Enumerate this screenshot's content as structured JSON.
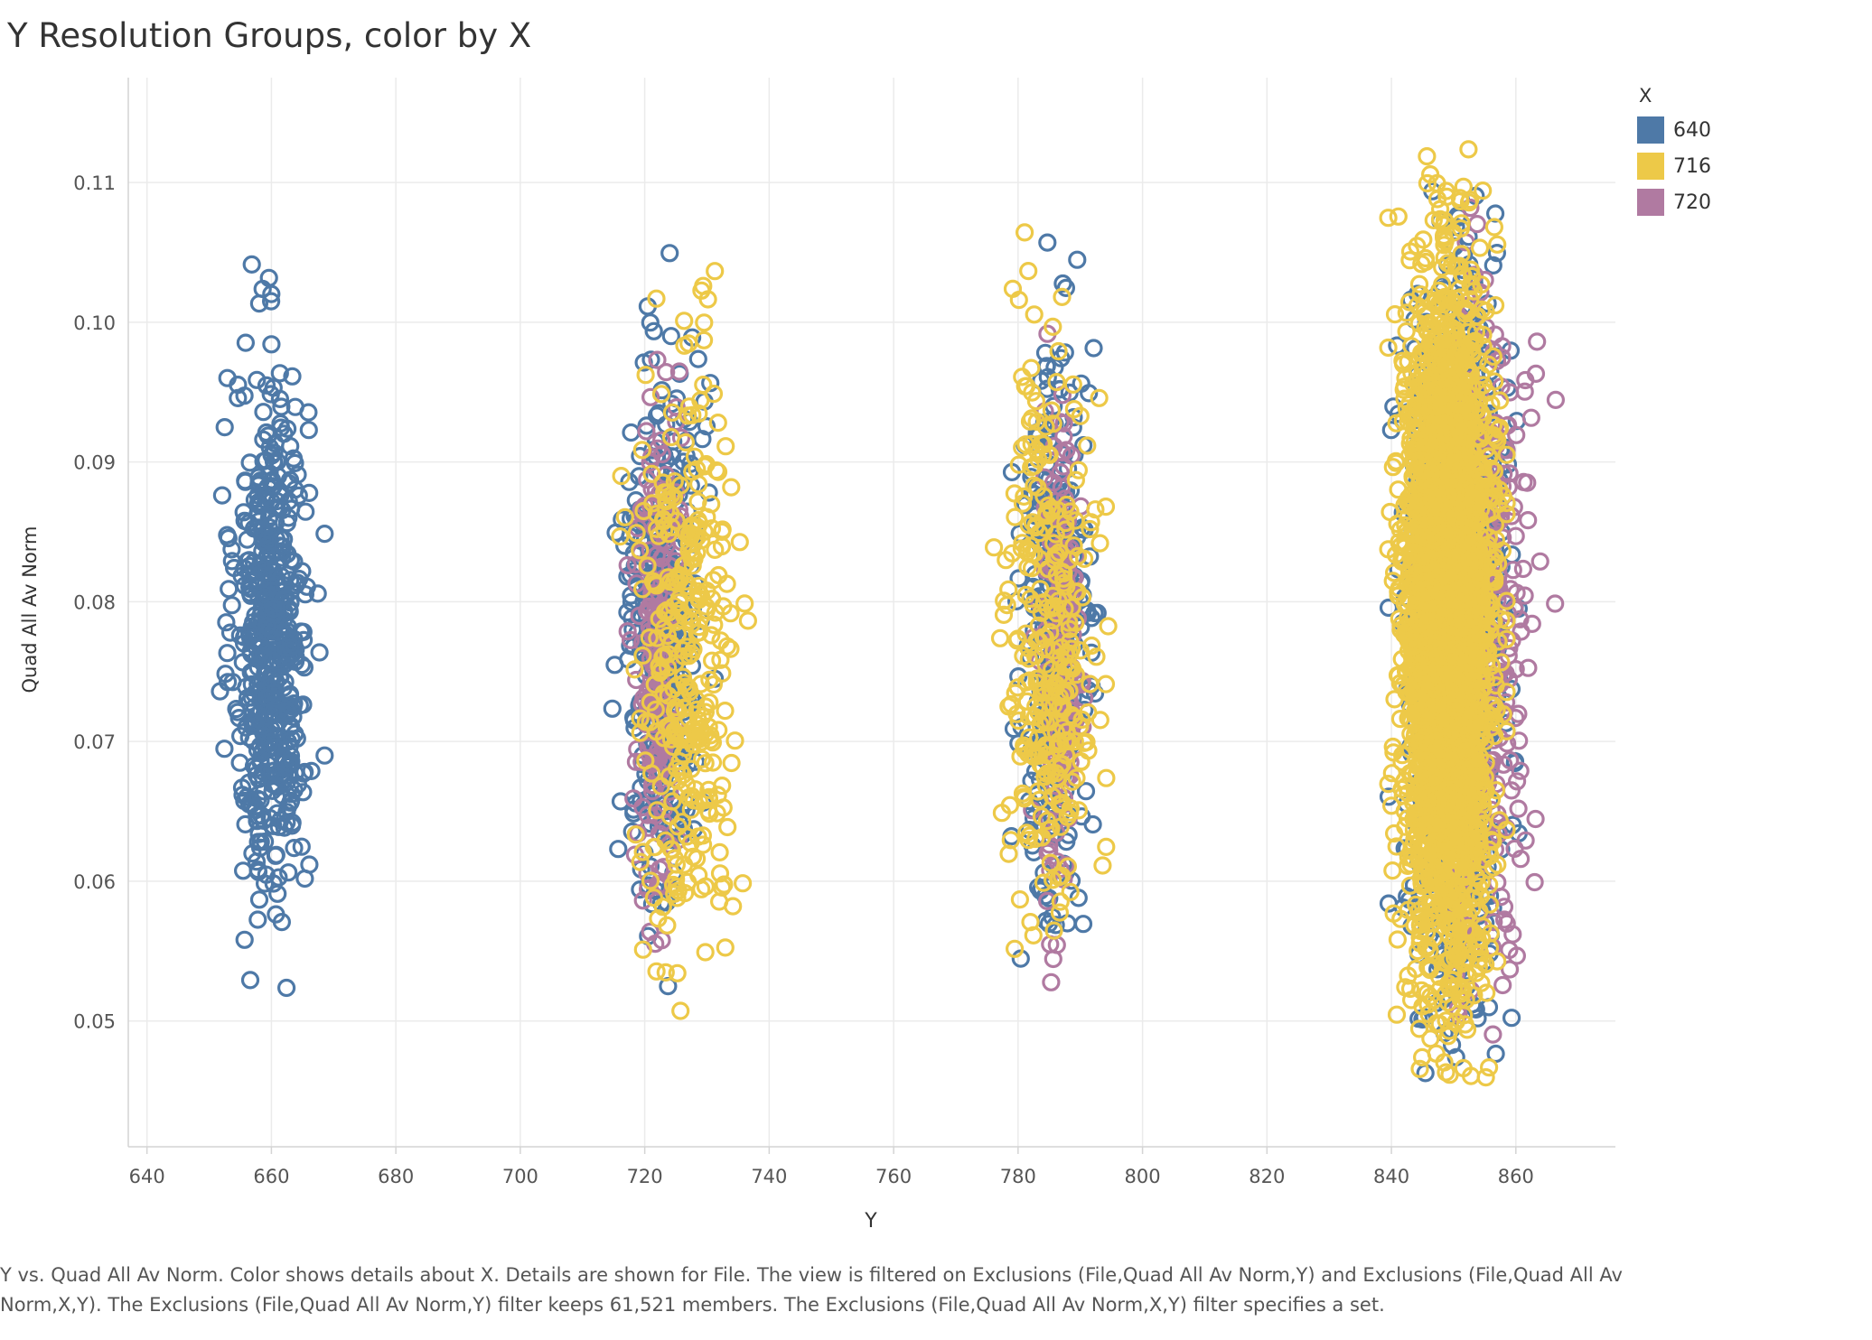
{
  "chart_data": {
    "type": "scatter",
    "title": "Y Resolution Groups, color by X",
    "xlabel": "Y",
    "ylabel": "Quad All Av Norm",
    "xlim": [
      637,
      876
    ],
    "ylim": [
      0.041,
      0.1175
    ],
    "x_ticks": [
      "640",
      "660",
      "680",
      "700",
      "720",
      "740",
      "760",
      "780",
      "800",
      "820",
      "840",
      "860"
    ],
    "y_ticks": [
      "0.05",
      "0.06",
      "0.07",
      "0.08",
      "0.09",
      "0.10",
      "0.11"
    ],
    "grid": true,
    "marker": "open-circle",
    "legend": {
      "title": "X",
      "position": "top-right",
      "entries": [
        {
          "label": "640",
          "color": "#4e79a7"
        },
        {
          "label": "716",
          "color": "#edc948"
        },
        {
          "label": "720",
          "color": "#b07aa1"
        }
      ]
    },
    "series": [
      {
        "name": "640",
        "color": "#4e79a7",
        "clusters": [
          {
            "x_center": 660,
            "x_spread": 4.5,
            "y_center": 0.0775,
            "y_spread": 0.0095,
            "y_min": 0.0508,
            "y_max": 0.1062,
            "count": 520
          },
          {
            "x_center": 723,
            "x_spread": 4.5,
            "y_center": 0.078,
            "y_spread": 0.0095,
            "y_min": 0.046,
            "y_max": 0.1058,
            "count": 380
          },
          {
            "x_center": 786,
            "x_spread": 4.0,
            "y_center": 0.078,
            "y_spread": 0.0095,
            "y_min": 0.0492,
            "y_max": 0.1102,
            "count": 320
          },
          {
            "x_center": 850,
            "x_spread": 5.5,
            "y_center": 0.078,
            "y_spread": 0.012,
            "y_min": 0.0458,
            "y_max": 0.1105,
            "count": 1300
          }
        ]
      },
      {
        "name": "716",
        "color": "#edc948",
        "clusters": [
          {
            "x_center": 727,
            "x_spread": 6.0,
            "y_center": 0.076,
            "y_spread": 0.0105,
            "y_min": 0.0505,
            "y_max": 0.1048,
            "count": 330
          },
          {
            "x_center": 785,
            "x_spread": 5.5,
            "y_center": 0.077,
            "y_spread": 0.0105,
            "y_min": 0.053,
            "y_max": 0.1068,
            "count": 300
          },
          {
            "x_center": 849,
            "x_spread": 5.0,
            "y_center": 0.078,
            "y_spread": 0.012,
            "y_min": 0.0455,
            "y_max": 0.1125,
            "count": 3200
          }
        ]
      },
      {
        "name": "720",
        "color": "#b07aa1",
        "clusters": [
          {
            "x_center": 722,
            "x_spread": 2.5,
            "y_center": 0.077,
            "y_spread": 0.0095,
            "y_min": 0.0465,
            "y_max": 0.1018,
            "count": 200
          },
          {
            "x_center": 787,
            "x_spread": 2.5,
            "y_center": 0.077,
            "y_spread": 0.0095,
            "y_min": 0.0512,
            "y_max": 0.1085,
            "count": 160
          },
          {
            "x_center": 855,
            "x_spread": 6.0,
            "y_center": 0.078,
            "y_spread": 0.012,
            "y_min": 0.0448,
            "y_max": 0.1112,
            "count": 280
          }
        ]
      }
    ]
  },
  "caption": "Y vs. Quad All Av Norm.  Color shows details about X.  Details are shown for File. The view is filtered on Exclusions (File,Quad All Av Norm,Y) and Exclusions (File,Quad All Av Norm,X,Y). The Exclusions (File,Quad All Av Norm,Y) filter keeps 61,521 members. The Exclusions (File,Quad All Av Norm,X,Y) filter specifies a set."
}
